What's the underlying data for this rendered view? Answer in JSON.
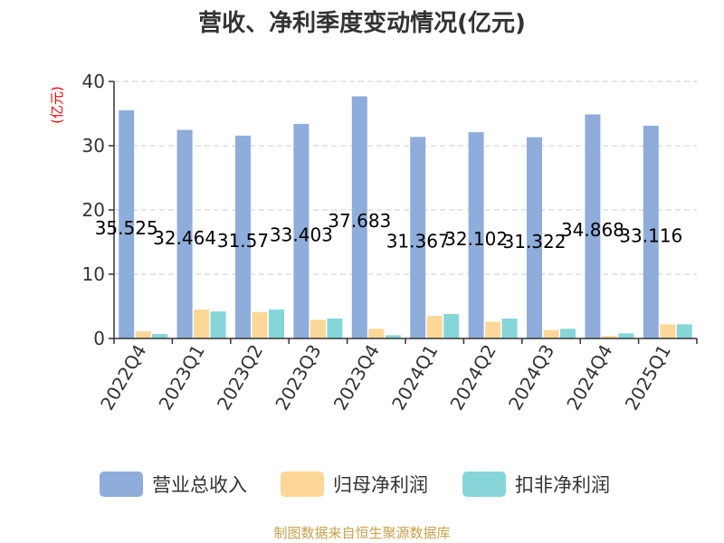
{
  "chart_data": {
    "type": "bar",
    "title": "营收、净利季度变动情况(亿元)",
    "unit_label": "(亿元)",
    "categories": [
      "2022Q4",
      "2023Q1",
      "2023Q2",
      "2023Q3",
      "2023Q4",
      "2024Q1",
      "2024Q2",
      "2024Q3",
      "2024Q4",
      "2025Q1"
    ],
    "series": [
      {
        "name": "营业总收入",
        "color": "#8eaddb",
        "values": [
          35.525,
          32.464,
          31.57,
          33.403,
          37.683,
          31.367,
          32.102,
          31.322,
          34.868,
          33.116
        ],
        "labels": [
          "35.525",
          "32.464",
          "31.57",
          "33.403",
          "37.683",
          "31.367",
          "32.102",
          "31.322",
          "34.868",
          "33.116"
        ]
      },
      {
        "name": "归母净利润",
        "color": "#fcd797",
        "values": [
          1.1,
          4.5,
          4.1,
          2.9,
          1.5,
          3.5,
          2.6,
          1.3,
          0.4,
          2.2
        ]
      },
      {
        "name": "扣非净利润",
        "color": "#86d6d9",
        "values": [
          0.7,
          4.2,
          4.5,
          3.1,
          0.5,
          3.8,
          3.1,
          1.5,
          0.8,
          2.2
        ]
      }
    ],
    "y_ticks": [
      "0",
      "10",
      "20",
      "30",
      "40"
    ],
    "ylim": [
      0,
      40
    ],
    "grid": true,
    "legend_position": "bottom",
    "source": "制图数据来自恒生聚源数据库"
  }
}
